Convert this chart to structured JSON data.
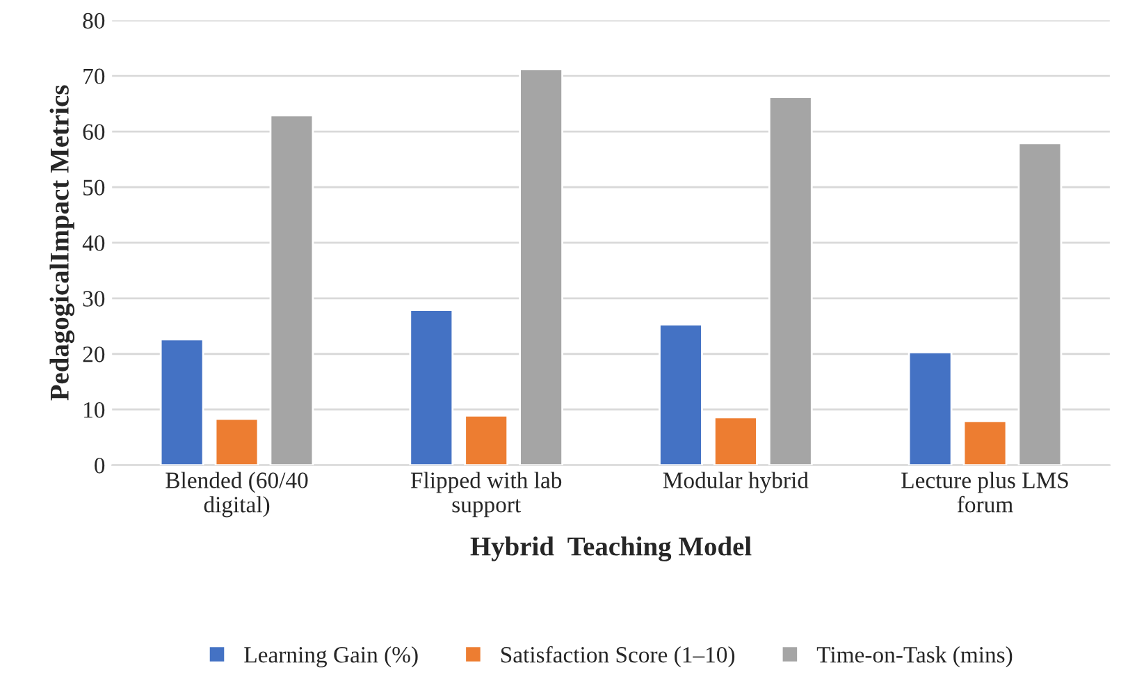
{
  "chart_data": {
    "type": "bar",
    "xlabel": "Hybrid  Teaching Model",
    "ylabel": "PedagogicalImpact Metrics",
    "categories": [
      "Blended (60/40\ndigital)",
      "Flipped with lab\nsupport",
      "Modular hybrid",
      "Lecture plus LMS\nforum"
    ],
    "series": [
      {
        "name": "Learning Gain (%)",
        "color": "#4472c4",
        "values": [
          22.6,
          27.9,
          25.3,
          20.3
        ]
      },
      {
        "name": "Satisfaction Score (1–10)",
        "color": "#ed7d31",
        "values": [
          8.3,
          8.9,
          8.6,
          7.9
        ]
      },
      {
        "name": "Time-on-Task (mins)",
        "color": "#a5a5a5",
        "values": [
          62.9,
          71.2,
          66.2,
          57.9
        ]
      }
    ],
    "ylim": [
      0,
      80
    ],
    "yticks": [
      0,
      10,
      20,
      30,
      40,
      50,
      60,
      70,
      80
    ],
    "grid": "y",
    "legend": "bottom"
  }
}
